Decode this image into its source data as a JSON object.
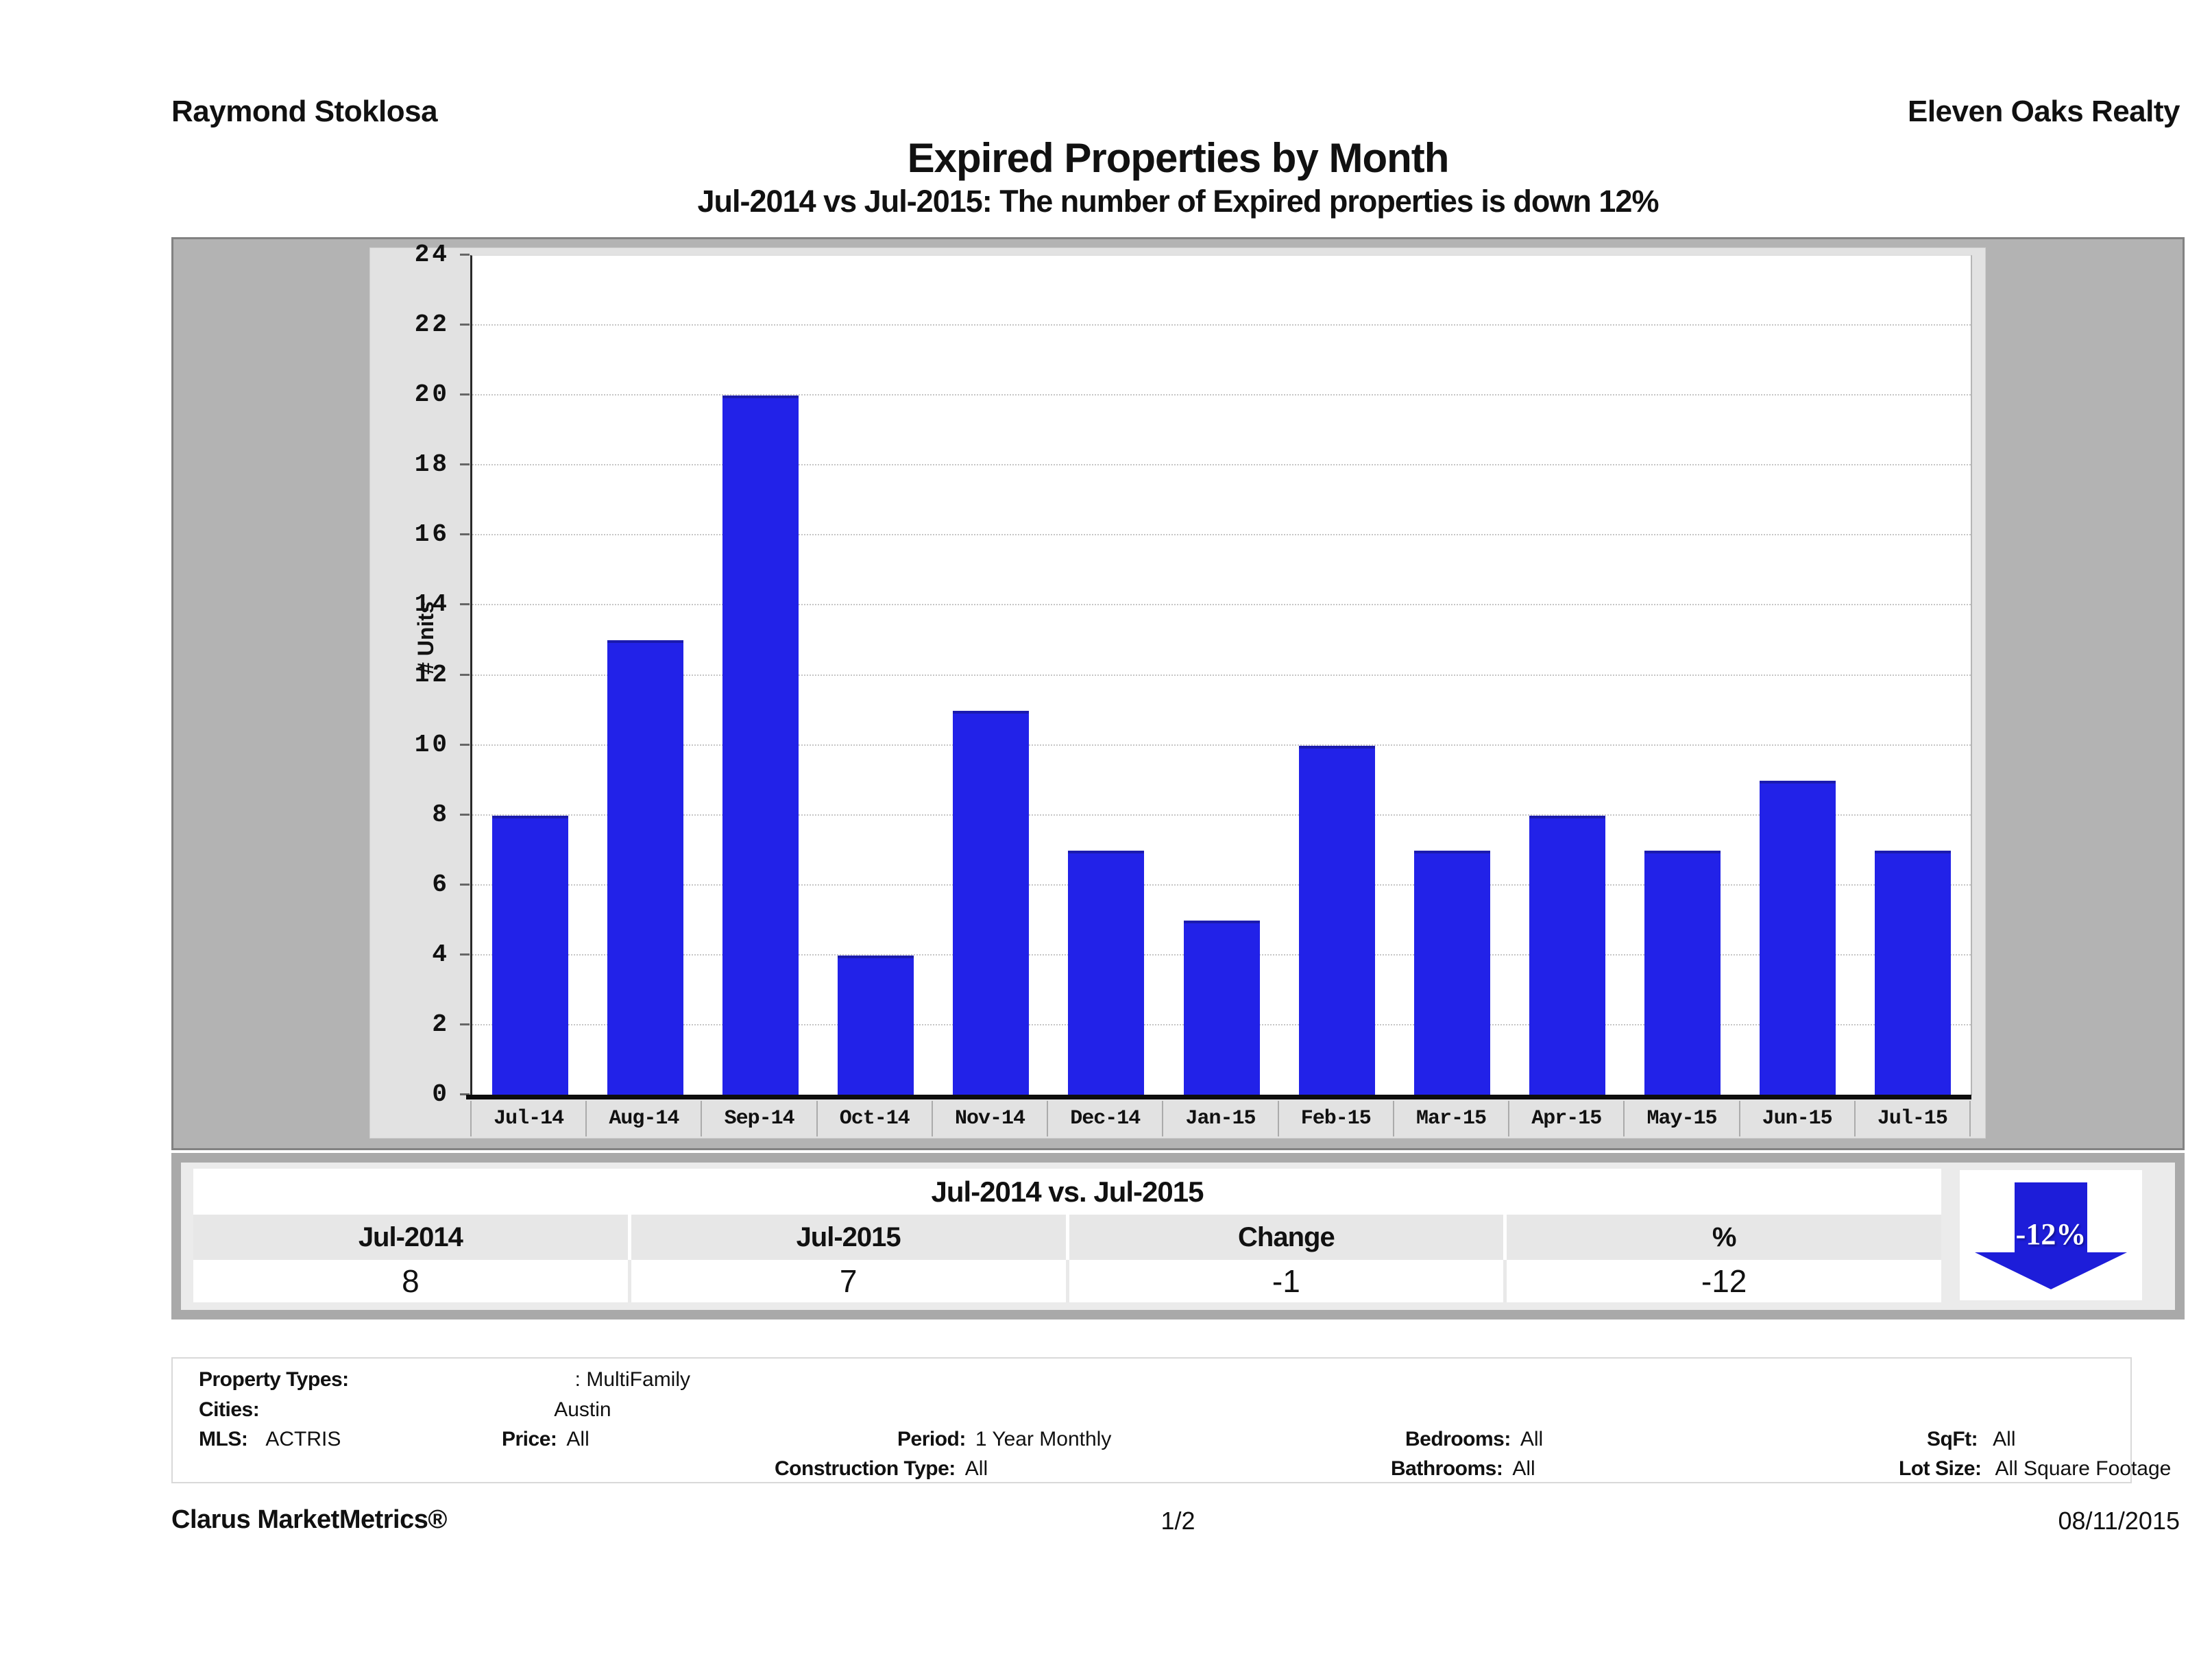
{
  "header": {
    "agent": "Raymond Stoklosa",
    "company": "Eleven Oaks Realty"
  },
  "title": "Expired Properties by Month",
  "subtitle": "Jul-2014 vs Jul-2015: The number of Expired  properties is down 12%",
  "chart_data": {
    "type": "bar",
    "title": "Expired Properties by Month",
    "categories": [
      "Jul-14",
      "Aug-14",
      "Sep-14",
      "Oct-14",
      "Nov-14",
      "Dec-14",
      "Jan-15",
      "Feb-15",
      "Mar-15",
      "Apr-15",
      "May-15",
      "Jun-15",
      "Jul-15"
    ],
    "values": [
      8,
      13,
      20,
      4,
      11,
      7,
      5,
      10,
      7,
      8,
      7,
      9,
      7
    ],
    "xlabel": "",
    "ylabel": "# Units",
    "ylim": [
      0,
      24
    ],
    "ytick_step": 2,
    "grid": "horizontal-dotted",
    "legend": "none",
    "bar_color": "#2222e8"
  },
  "summary_table": {
    "title": "Jul-2014 vs. Jul-2015",
    "columns": [
      "Jul-2014",
      "Jul-2015",
      "Change",
      "%"
    ],
    "values": [
      "8",
      "7",
      "-1",
      "-12"
    ],
    "badge": {
      "label": "-12%",
      "direction": "down",
      "color": "#1d1dd9"
    }
  },
  "criteria": {
    "property_types_label": "Property Types:",
    "property_types": ": MultiFamily",
    "cities_label": "Cities:",
    "cities": "Austin",
    "mls_label": "MLS:",
    "mls": "ACTRIS",
    "price_label": "Price:",
    "price": "All",
    "period_label": "Period:",
    "period": "1 Year Monthly",
    "construction_label": "Construction Type:",
    "construction": "All",
    "bedrooms_label": "Bedrooms:",
    "bedrooms": "All",
    "bathrooms_label": "Bathrooms:",
    "bathrooms": "All",
    "sqft_label": "SqFt:",
    "sqft": "All",
    "lot_label": "Lot Size:",
    "lot": "All Square Footage"
  },
  "footer": {
    "brand": "Clarus MarketMetrics®",
    "page": "1/2",
    "date": "08/11/2015"
  }
}
